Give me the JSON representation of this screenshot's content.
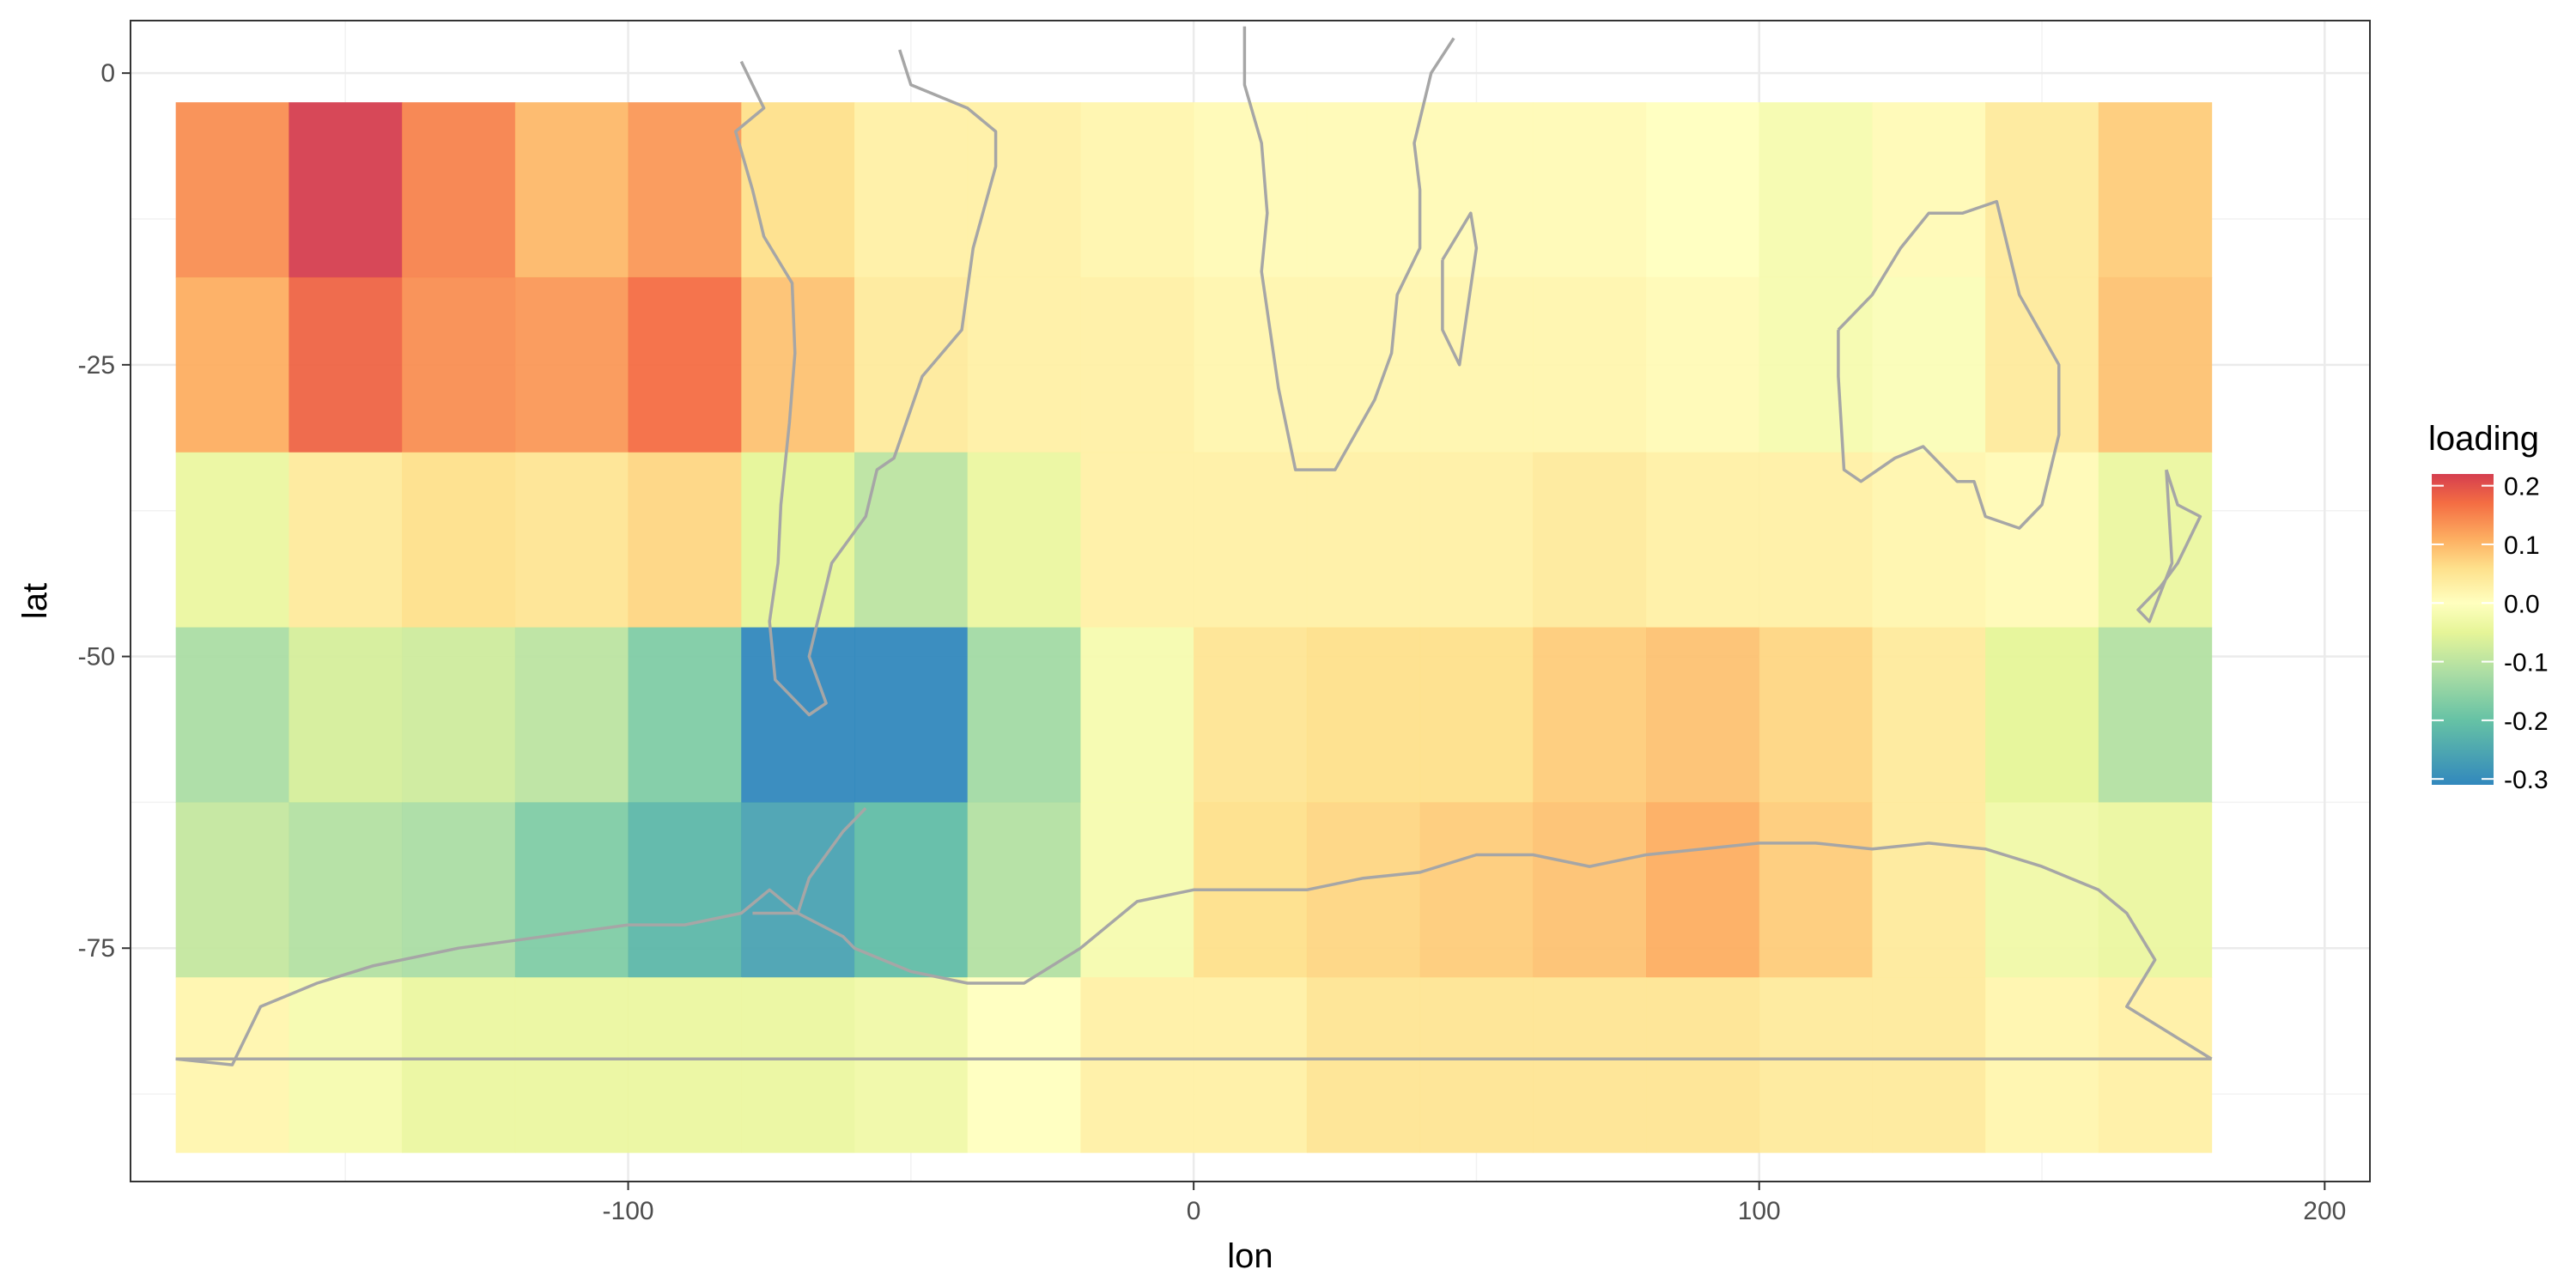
{
  "chart_data": {
    "type": "heatmap",
    "title": "",
    "xlabel": "lon",
    "ylabel": "lat",
    "xlim": [
      -188,
      208
    ],
    "ylim": [
      -95,
      4.5
    ],
    "x_ticks": [
      -100,
      0,
      100,
      200
    ],
    "y_ticks": [
      0,
      -25,
      -50,
      -75
    ],
    "x_tick_labels": [
      "-100",
      "0",
      "100",
      "200"
    ],
    "y_tick_labels": [
      "0",
      "-25",
      "-50",
      "-75"
    ],
    "grid": true,
    "cell_width_deg": 20,
    "lon_centers": [
      -170,
      -150,
      -130,
      -110,
      -90,
      -70,
      -50,
      -30,
      -10,
      10,
      30,
      50,
      70,
      90,
      110,
      130,
      150,
      170
    ],
    "lat_bands": [
      [
        -2.5,
        -17.5
      ],
      [
        -17.5,
        -32.5
      ],
      [
        -32.5,
        -47.5
      ],
      [
        -47.5,
        -62.5
      ],
      [
        -62.5,
        -77.5
      ],
      [
        -77.5,
        -92.5
      ]
    ],
    "values": [
      [
        0.14,
        0.22,
        0.15,
        0.1,
        0.13,
        0.06,
        0.03,
        0.03,
        0.02,
        0.01,
        0.01,
        0.01,
        0.01,
        0.0,
        -0.02,
        0.01,
        0.04,
        0.08
      ],
      [
        0.11,
        0.18,
        0.14,
        0.13,
        0.17,
        0.09,
        0.04,
        0.03,
        0.03,
        0.02,
        0.02,
        0.02,
        0.02,
        0.01,
        -0.02,
        -0.01,
        0.04,
        0.09
      ],
      [
        -0.04,
        0.04,
        0.06,
        0.05,
        0.07,
        -0.05,
        -0.1,
        -0.04,
        0.03,
        0.03,
        0.03,
        0.03,
        0.04,
        0.03,
        0.03,
        0.02,
        0.01,
        -0.04
      ],
      [
        -0.12,
        -0.07,
        -0.08,
        -0.1,
        -0.17,
        -0.31,
        -0.31,
        -0.13,
        -0.02,
        0.05,
        0.06,
        0.06,
        0.08,
        0.09,
        0.07,
        0.04,
        -0.05,
        -0.11
      ],
      [
        -0.09,
        -0.11,
        -0.12,
        -0.17,
        -0.22,
        -0.26,
        -0.21,
        -0.11,
        -0.02,
        0.06,
        0.07,
        0.08,
        0.09,
        0.11,
        0.08,
        0.04,
        -0.03,
        -0.04
      ],
      [
        0.02,
        -0.02,
        -0.04,
        -0.04,
        -0.04,
        -0.04,
        -0.03,
        0.0,
        0.03,
        0.03,
        0.05,
        0.05,
        0.05,
        0.05,
        0.04,
        0.04,
        0.02,
        0.03
      ]
    ],
    "colorscale": {
      "name": "Spectral",
      "domain": [
        -0.31,
        0.22
      ],
      "stops": [
        {
          "v": -0.31,
          "color": "#3288bd"
        },
        {
          "v": -0.2,
          "color": "#66c2a5"
        },
        {
          "v": -0.12,
          "color": "#abdda4"
        },
        {
          "v": -0.05,
          "color": "#e6f598"
        },
        {
          "v": 0.0,
          "color": "#ffffbf"
        },
        {
          "v": 0.06,
          "color": "#fee08b"
        },
        {
          "v": 0.11,
          "color": "#fdae61"
        },
        {
          "v": 0.17,
          "color": "#f46d43"
        },
        {
          "v": 0.22,
          "color": "#d53e4f"
        }
      ]
    },
    "legend": {
      "title": "loading",
      "position": "right",
      "ticks": [
        0.2,
        0.1,
        0.0,
        -0.1,
        -0.2,
        -0.3
      ],
      "tick_labels": [
        "0.2",
        "0.1",
        "0.0",
        "-0.1",
        "-0.2",
        "-0.3"
      ]
    },
    "overlay": {
      "type": "coastlines",
      "color": "#a6a6a6",
      "approx_paths": {
        "south_america": [
          [
            -80,
            1
          ],
          [
            -76,
            -3
          ],
          [
            -81,
            -5
          ],
          [
            -78,
            -10
          ],
          [
            -76,
            -14
          ],
          [
            -71,
            -18
          ],
          [
            -70.5,
            -24
          ],
          [
            -71.5,
            -30
          ],
          [
            -73,
            -37
          ],
          [
            -73.5,
            -42
          ],
          [
            -75,
            -47
          ],
          [
            -74,
            -52
          ],
          [
            -68,
            -55
          ],
          [
            -65,
            -54
          ],
          [
            -68,
            -50
          ],
          [
            -66,
            -46
          ],
          [
            -64,
            -42
          ],
          [
            -58,
            -38
          ],
          [
            -56,
            -34
          ],
          [
            -53,
            -33
          ],
          [
            -48,
            -26
          ],
          [
            -41,
            -22
          ],
          [
            -39,
            -15
          ],
          [
            -35,
            -8
          ],
          [
            -35,
            -5
          ],
          [
            -40,
            -3
          ],
          [
            -50,
            -1
          ],
          [
            -52,
            2
          ]
        ],
        "africa": [
          [
            9,
            4
          ],
          [
            9,
            -1
          ],
          [
            12,
            -6
          ],
          [
            13,
            -12
          ],
          [
            12,
            -17
          ],
          [
            15,
            -27
          ],
          [
            18,
            -34
          ],
          [
            25,
            -34
          ],
          [
            32,
            -28
          ],
          [
            35,
            -24
          ],
          [
            36,
            -19
          ],
          [
            40,
            -15
          ],
          [
            40,
            -10
          ],
          [
            39,
            -6
          ],
          [
            42,
            0
          ],
          [
            46,
            3
          ]
        ],
        "madagascar": [
          [
            44,
            -16
          ],
          [
            49,
            -12
          ],
          [
            50,
            -15
          ],
          [
            47,
            -25
          ],
          [
            44,
            -22
          ],
          [
            44,
            -16
          ]
        ],
        "australia": [
          [
            114,
            -22
          ],
          [
            114,
            -26
          ],
          [
            115,
            -34
          ],
          [
            118,
            -35
          ],
          [
            124,
            -33
          ],
          [
            129,
            -32
          ],
          [
            135,
            -35
          ],
          [
            138,
            -35
          ],
          [
            140,
            -38
          ],
          [
            146,
            -39
          ],
          [
            150,
            -37
          ],
          [
            153,
            -31
          ],
          [
            153,
            -25
          ],
          [
            146,
            -19
          ],
          [
            142,
            -11
          ],
          [
            136,
            -12
          ],
          [
            130,
            -12
          ],
          [
            125,
            -15
          ],
          [
            120,
            -19
          ],
          [
            114,
            -22
          ]
        ],
        "new_zealand": [
          [
            172,
            -34
          ],
          [
            174,
            -37
          ],
          [
            178,
            -38
          ],
          [
            175,
            -41
          ],
          [
            174,
            -42
          ],
          [
            171,
            -44
          ],
          [
            167,
            -46
          ],
          [
            169,
            -47
          ],
          [
            173,
            -42
          ],
          [
            172,
            -34
          ]
        ],
        "antarctic_peninsula": [
          [
            -58,
            -63
          ],
          [
            -62,
            -65
          ],
          [
            -65,
            -67
          ],
          [
            -68,
            -69
          ],
          [
            -70,
            -72
          ],
          [
            -75,
            -72
          ],
          [
            -78,
            -72
          ]
        ],
        "antarctica": [
          [
            -180,
            -84.5
          ],
          [
            -170,
            -85
          ],
          [
            -165,
            -80
          ],
          [
            -155,
            -78
          ],
          [
            -145,
            -76.5
          ],
          [
            -130,
            -75
          ],
          [
            -115,
            -74
          ],
          [
            -100,
            -73
          ],
          [
            -90,
            -73
          ],
          [
            -80,
            -72
          ],
          [
            -75,
            -70
          ],
          [
            -70,
            -72
          ],
          [
            -62,
            -74
          ],
          [
            -60,
            -75
          ],
          [
            -50,
            -77
          ],
          [
            -40,
            -78
          ],
          [
            -30,
            -78
          ],
          [
            -20,
            -75
          ],
          [
            -10,
            -71
          ],
          [
            0,
            -70
          ],
          [
            10,
            -70
          ],
          [
            20,
            -70
          ],
          [
            30,
            -69
          ],
          [
            40,
            -68.5
          ],
          [
            50,
            -67
          ],
          [
            60,
            -67
          ],
          [
            70,
            -68
          ],
          [
            80,
            -67
          ],
          [
            90,
            -66.5
          ],
          [
            100,
            -66
          ],
          [
            110,
            -66
          ],
          [
            120,
            -66.5
          ],
          [
            130,
            -66
          ],
          [
            140,
            -66.5
          ],
          [
            150,
            -68
          ],
          [
            160,
            -70
          ],
          [
            165,
            -72
          ],
          [
            170,
            -76
          ],
          [
            165,
            -80
          ],
          [
            180,
            -84.5
          ]
        ],
        "antarctic_baseline": [
          [
            -180,
            -84.5
          ],
          [
            180,
            -84.5
          ]
        ]
      }
    }
  }
}
